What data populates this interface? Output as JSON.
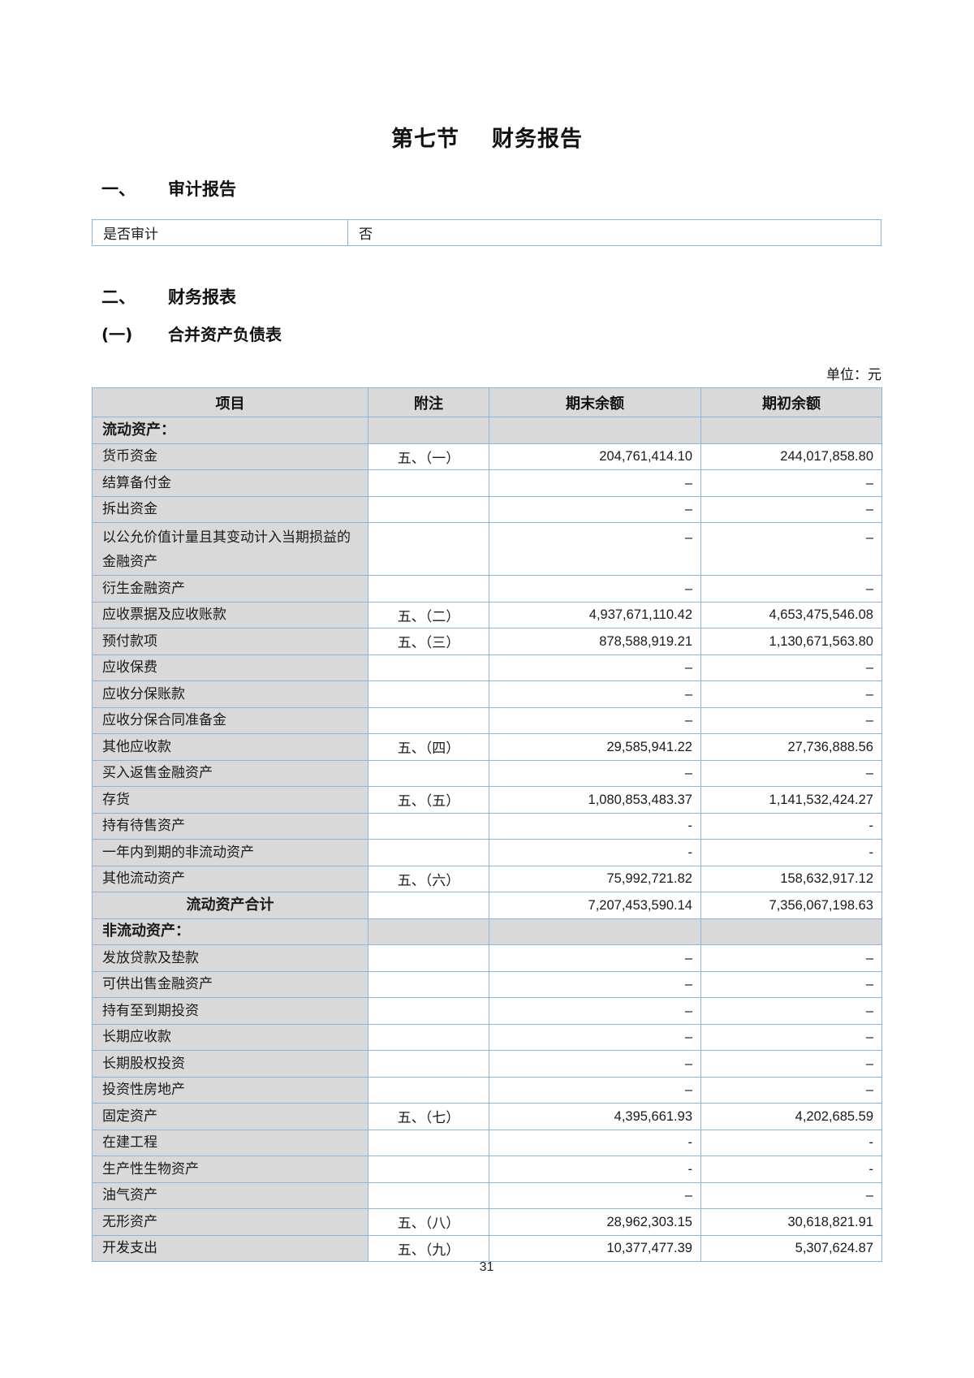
{
  "page": {
    "title_part1": "第七节",
    "title_part2": "财务报告",
    "page_number": "31"
  },
  "sections": {
    "audit": {
      "number": "一、",
      "title": "审计报告"
    },
    "statements": {
      "number": "二、",
      "title": "财务报表"
    },
    "balance_sheet": {
      "number": "(一)",
      "title": "合并资产负债表"
    },
    "unit_label": "单位：元"
  },
  "audit_table": {
    "rows": [
      {
        "label": "是否审计",
        "value": "否"
      }
    ]
  },
  "balance_sheet_table": {
    "headers": [
      "项目",
      "附注",
      "期末余额",
      "期初余额"
    ],
    "rows": [
      {
        "item": "流动资产：",
        "type": "section",
        "note": "",
        "ending": "",
        "beginning": ""
      },
      {
        "item": "货币资金",
        "type": "data",
        "note": "五、（一）",
        "ending": "204,761,414.10",
        "beginning": "244,017,858.80"
      },
      {
        "item": "结算备付金",
        "type": "data",
        "note": "",
        "ending": "–",
        "beginning": "–"
      },
      {
        "item": "拆出资金",
        "type": "data",
        "note": "",
        "ending": "–",
        "beginning": "–"
      },
      {
        "item": "以公允价值计量且其变动计入当期损益的金融资产",
        "type": "data",
        "tall": true,
        "note": "",
        "ending": "–",
        "beginning": "–"
      },
      {
        "item": "衍生金融资产",
        "type": "data",
        "note": "",
        "ending": "–",
        "beginning": "–"
      },
      {
        "item": "应收票据及应收账款",
        "type": "data",
        "note": "五、（二）",
        "ending": "4,937,671,110.42",
        "beginning": "4,653,475,546.08"
      },
      {
        "item": "预付款项",
        "type": "data",
        "note": "五、（三）",
        "ending": "878,588,919.21",
        "beginning": "1,130,671,563.80"
      },
      {
        "item": "应收保费",
        "type": "data",
        "note": "",
        "ending": "–",
        "beginning": "–"
      },
      {
        "item": "应收分保账款",
        "type": "data",
        "note": "",
        "ending": "–",
        "beginning": "–"
      },
      {
        "item": "应收分保合同准备金",
        "type": "data",
        "note": "",
        "ending": "–",
        "beginning": "–"
      },
      {
        "item": "其他应收款",
        "type": "data",
        "note": "五、（四）",
        "ending": "29,585,941.22",
        "beginning": "27,736,888.56"
      },
      {
        "item": "买入返售金融资产",
        "type": "data",
        "note": "",
        "ending": "–",
        "beginning": "–"
      },
      {
        "item": "存货",
        "type": "data",
        "note": "五、（五）",
        "ending": "1,080,853,483.37",
        "beginning": "1,141,532,424.27"
      },
      {
        "item": "持有待售资产",
        "type": "data",
        "note": "",
        "ending": "-",
        "beginning": "-"
      },
      {
        "item": "一年内到期的非流动资产",
        "type": "data",
        "note": "",
        "ending": "-",
        "beginning": "-"
      },
      {
        "item": "其他流动资产",
        "type": "data",
        "note": "五、（六）",
        "ending": "75,992,721.82",
        "beginning": "158,632,917.12"
      },
      {
        "item": "流动资产合计",
        "type": "total",
        "note": "",
        "ending": "7,207,453,590.14",
        "beginning": "7,356,067,198.63"
      },
      {
        "item": "非流动资产：",
        "type": "section",
        "note": "",
        "ending": "",
        "beginning": ""
      },
      {
        "item": "发放贷款及垫款",
        "type": "data",
        "note": "",
        "ending": "–",
        "beginning": "–"
      },
      {
        "item": "可供出售金融资产",
        "type": "data",
        "note": "",
        "ending": "–",
        "beginning": "–"
      },
      {
        "item": "持有至到期投资",
        "type": "data",
        "note": "",
        "ending": "–",
        "beginning": "–"
      },
      {
        "item": "长期应收款",
        "type": "data",
        "note": "",
        "ending": "–",
        "beginning": "–"
      },
      {
        "item": "长期股权投资",
        "type": "data",
        "note": "",
        "ending": "–",
        "beginning": "–"
      },
      {
        "item": "投资性房地产",
        "type": "data",
        "note": "",
        "ending": "–",
        "beginning": "–"
      },
      {
        "item": "固定资产",
        "type": "data",
        "note": "五、（七）",
        "ending": "4,395,661.93",
        "beginning": "4,202,685.59"
      },
      {
        "item": "在建工程",
        "type": "data",
        "note": "",
        "ending": "-",
        "beginning": "-"
      },
      {
        "item": "生产性生物资产",
        "type": "data",
        "note": "",
        "ending": "-",
        "beginning": "-"
      },
      {
        "item": "油气资产",
        "type": "data",
        "note": "",
        "ending": "–",
        "beginning": "–"
      },
      {
        "item": "无形资产",
        "type": "data",
        "note": "五、（八）",
        "ending": "28,962,303.15",
        "beginning": "30,618,821.91"
      },
      {
        "item": "开发支出",
        "type": "data",
        "note": "五、（九）",
        "ending": "10,377,477.39",
        "beginning": "5,307,624.87"
      }
    ]
  },
  "colors": {
    "table_border": "#8eb4d8",
    "cell_gray": "#d9d9d9",
    "text": "#1a1a1a",
    "background": "#ffffff"
  }
}
